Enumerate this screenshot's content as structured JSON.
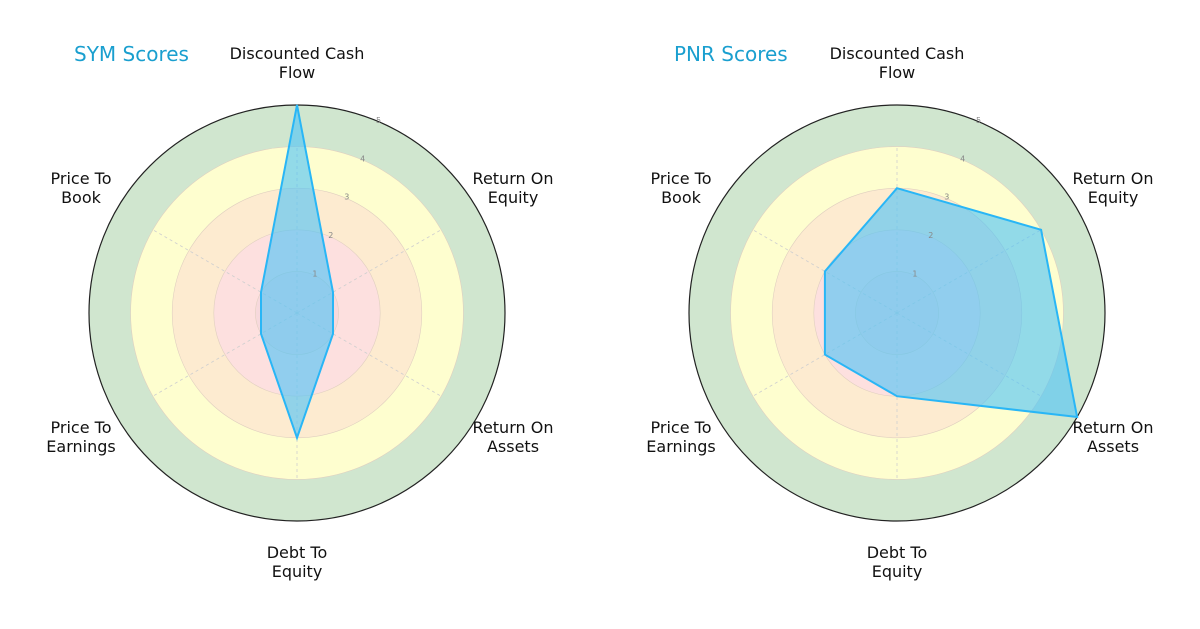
{
  "chart_data": [
    {
      "type": "radar",
      "title": "SYM Scores",
      "categories": [
        "Discounted Cash\nFlow",
        "Return On\nEquity",
        "Return On\nAssets",
        "Debt To\nEquity",
        "Price To\nEarnings",
        "Price To\nBook"
      ],
      "values": [
        5,
        1,
        1,
        3,
        1,
        1
      ],
      "rlim": [
        0,
        5
      ],
      "rticks": [
        1,
        2,
        3,
        4,
        5
      ]
    },
    {
      "type": "radar",
      "title": "PNR Scores",
      "categories": [
        "Discounted Cash\nFlow",
        "Return On\nEquity",
        "Return On\nAssets",
        "Debt To\nEquity",
        "Price To\nEarnings",
        "Price To\nBook"
      ],
      "values": [
        3,
        4,
        5,
        2,
        2,
        2
      ],
      "rlim": [
        0,
        5
      ],
      "rticks": [
        1,
        2,
        3,
        4,
        5
      ]
    }
  ],
  "colors": {
    "title": "#1a9fcf",
    "fill": "#4fc3f7",
    "stroke": "#29b6f6",
    "ring_0_1": "#f7d9dc",
    "ring_1_2": "#fde0df",
    "ring_2_3": "#fdebd0",
    "ring_3_4": "#fefecf",
    "ring_4_5": "#d0e6cf"
  }
}
